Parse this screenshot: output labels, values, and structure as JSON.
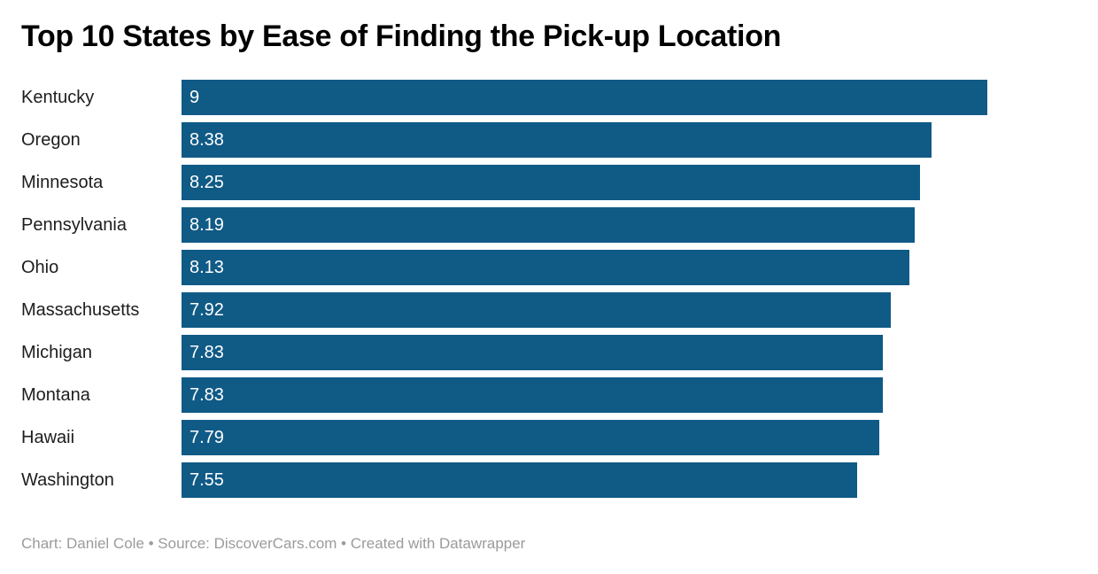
{
  "title": "Top 10 States by Ease of Finding the Pick-up Location",
  "footer": "Chart: Daniel Cole • Source: DiscoverCars.com • Created with Datawrapper",
  "colors": {
    "bar": "#105a86",
    "title": "#000000",
    "category_label": "#1d1d1d",
    "value_label": "#ffffff",
    "footer": "#9b9b9b",
    "background": "#ffffff"
  },
  "chart_data": {
    "type": "bar",
    "orientation": "horizontal",
    "title": "Top 10 States by Ease of Finding the Pick-up Location",
    "categories": [
      "Kentucky",
      "Oregon",
      "Minnesota",
      "Pennsylvania",
      "Ohio",
      "Massachusetts",
      "Michigan",
      "Montana",
      "Hawaii",
      "Washington"
    ],
    "values": [
      9,
      8.38,
      8.25,
      8.19,
      8.13,
      7.92,
      7.83,
      7.83,
      7.79,
      7.55
    ],
    "value_labels": [
      "9",
      "8.38",
      "8.25",
      "8.19",
      "8.13",
      "7.92",
      "7.83",
      "7.83",
      "7.79",
      "7.55"
    ],
    "xlabel": "",
    "ylabel": "",
    "xlim": [
      0,
      9
    ],
    "grid": false,
    "legend": false,
    "value_label_position": "inside-left"
  }
}
